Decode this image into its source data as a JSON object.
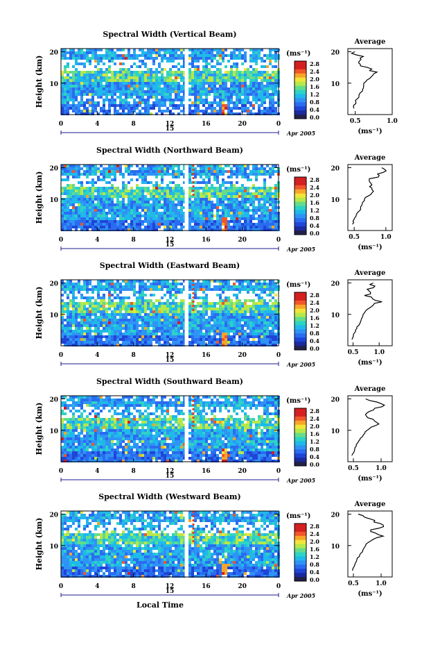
{
  "chart_data": [
    {
      "type": "heatmap",
      "title": "Spectral Width (Vertical Beam)",
      "ylabel": "Height (km)",
      "x_ticks": [
        "0",
        "4",
        "8",
        "12",
        "16",
        "20",
        "0"
      ],
      "y_ticks": [
        "10",
        "20"
      ],
      "date_marker": "15",
      "date_label": "Apr 2005",
      "colorbar": {
        "unit": "(ms⁻¹)",
        "ticks": [
          "2.8",
          "2.4",
          "2.0",
          "1.6",
          "1.2",
          "0.8",
          "0.4",
          "0.0"
        ]
      },
      "average_profile": {
        "title": "Average",
        "xlabel": "(ms⁻¹)",
        "x_ticks": [
          "0.5",
          "1.0"
        ],
        "y_ticks": [
          "10",
          "20"
        ],
        "xlim": [
          0.4,
          1.0
        ],
        "points": [
          [
            0.48,
            2
          ],
          [
            0.49,
            3
          ],
          [
            0.5,
            4
          ],
          [
            0.52,
            5
          ],
          [
            0.55,
            6
          ],
          [
            0.58,
            7
          ],
          [
            0.6,
            8
          ],
          [
            0.61,
            9
          ],
          [
            0.62,
            10
          ],
          [
            0.66,
            11
          ],
          [
            0.72,
            12
          ],
          [
            0.78,
            13
          ],
          [
            0.7,
            14
          ],
          [
            0.66,
            15
          ],
          [
            0.58,
            16
          ],
          [
            0.55,
            17
          ],
          [
            0.6,
            18
          ],
          [
            0.52,
            19
          ],
          [
            0.5,
            20
          ]
        ]
      }
    },
    {
      "type": "heatmap",
      "title": "Spectral Width (Northward Beam)",
      "ylabel": "Height (km)",
      "x_ticks": [
        "0",
        "4",
        "8",
        "12",
        "16",
        "20",
        "0"
      ],
      "y_ticks": [
        "10",
        "20"
      ],
      "date_marker": "15",
      "date_label": "Apr 2005",
      "colorbar": {
        "unit": "(ms⁻¹)",
        "ticks": [
          "2.8",
          "2.4",
          "2.0",
          "1.6",
          "1.2",
          "0.8",
          "0.4",
          "0.0"
        ]
      },
      "average_profile": {
        "title": "Average",
        "xlabel": "(ms⁻¹)",
        "x_ticks": [
          "0.5",
          "1.0"
        ],
        "y_ticks": [
          "10",
          "20"
        ],
        "xlim": [
          0.4,
          1.1
        ],
        "points": [
          [
            0.48,
            2
          ],
          [
            0.49,
            3
          ],
          [
            0.5,
            4
          ],
          [
            0.53,
            5
          ],
          [
            0.57,
            6
          ],
          [
            0.6,
            7
          ],
          [
            0.62,
            8
          ],
          [
            0.64,
            9
          ],
          [
            0.66,
            10
          ],
          [
            0.72,
            11
          ],
          [
            0.78,
            12
          ],
          [
            0.82,
            13
          ],
          [
            0.75,
            14
          ],
          [
            0.8,
            15
          ],
          [
            0.72,
            16
          ],
          [
            0.85,
            17
          ],
          [
            0.9,
            18
          ],
          [
            1.0,
            19
          ],
          [
            0.95,
            20
          ]
        ]
      }
    },
    {
      "type": "heatmap",
      "title": "Spectral Width (Eastward Beam)",
      "ylabel": "Height (km)",
      "x_ticks": [
        "0",
        "4",
        "8",
        "12",
        "16",
        "20",
        "0"
      ],
      "y_ticks": [
        "10",
        "20"
      ],
      "date_marker": "15",
      "date_label": "Apr 2005",
      "colorbar": {
        "unit": "(ms⁻¹)",
        "ticks": [
          "2.8",
          "2.4",
          "2.0",
          "1.6",
          "1.2",
          "0.8",
          "0.4",
          "0.0"
        ]
      },
      "average_profile": {
        "title": "Average",
        "xlabel": "(ms⁻¹)",
        "x_ticks": [
          "0.5",
          "1.0"
        ],
        "y_ticks": [
          "10",
          "20"
        ],
        "xlim": [
          0.4,
          1.25
        ],
        "points": [
          [
            0.48,
            2
          ],
          [
            0.5,
            3
          ],
          [
            0.52,
            4
          ],
          [
            0.55,
            5
          ],
          [
            0.58,
            6
          ],
          [
            0.62,
            7
          ],
          [
            0.65,
            8
          ],
          [
            0.67,
            9
          ],
          [
            0.7,
            10
          ],
          [
            0.74,
            11
          ],
          [
            0.8,
            12
          ],
          [
            0.88,
            13
          ],
          [
            1.05,
            14
          ],
          [
            0.9,
            15
          ],
          [
            0.75,
            16
          ],
          [
            0.85,
            17
          ],
          [
            0.8,
            18
          ],
          [
            0.9,
            19
          ],
          [
            0.85,
            20
          ]
        ]
      }
    },
    {
      "type": "heatmap",
      "title": "Spectral Width (Southward Beam)",
      "ylabel": "Height (km)",
      "x_ticks": [
        "0",
        "4",
        "8",
        "12",
        "16",
        "20",
        "0"
      ],
      "y_ticks": [
        "10",
        "20"
      ],
      "date_marker": "15",
      "date_label": "Apr 2005",
      "colorbar": {
        "unit": "(ms⁻¹)",
        "ticks": [
          "2.8",
          "2.4",
          "2.0",
          "1.6",
          "1.2",
          "0.8",
          "0.4",
          "0.0"
        ]
      },
      "average_profile": {
        "title": "Average",
        "xlabel": "(ms⁻¹)",
        "x_ticks": [
          "0.5",
          "1.0"
        ],
        "y_ticks": [
          "10",
          "20"
        ],
        "xlim": [
          0.4,
          1.2
        ],
        "points": [
          [
            0.48,
            2
          ],
          [
            0.5,
            3
          ],
          [
            0.52,
            4
          ],
          [
            0.55,
            5
          ],
          [
            0.58,
            6
          ],
          [
            0.62,
            7
          ],
          [
            0.66,
            8
          ],
          [
            0.7,
            9
          ],
          [
            0.75,
            10
          ],
          [
            0.82,
            11
          ],
          [
            0.95,
            12
          ],
          [
            0.88,
            13
          ],
          [
            0.8,
            14
          ],
          [
            0.72,
            15
          ],
          [
            0.78,
            16
          ],
          [
            0.9,
            17
          ],
          [
            1.05,
            18
          ],
          [
            0.95,
            19
          ],
          [
            0.75,
            20
          ]
        ]
      }
    },
    {
      "type": "heatmap",
      "title": "Spectral Width (Westward Beam)",
      "ylabel": "Height (km)",
      "xlabel": "Local Time",
      "x_ticks": [
        "0",
        "4",
        "8",
        "12",
        "16",
        "20",
        "0"
      ],
      "y_ticks": [
        "10",
        "20"
      ],
      "date_marker": "15",
      "date_label": "Apr 2005",
      "colorbar": {
        "unit": "(ms⁻¹)",
        "ticks": [
          "2.8",
          "2.4",
          "2.0",
          "1.6",
          "1.2",
          "0.8",
          "0.4",
          "0.0"
        ]
      },
      "average_profile": {
        "title": "Average",
        "xlabel": "(ms⁻¹)",
        "x_ticks": [
          "0.5",
          "1.0"
        ],
        "y_ticks": [
          "10",
          "20"
        ],
        "xlim": [
          0.4,
          1.2
        ],
        "points": [
          [
            0.48,
            2
          ],
          [
            0.5,
            3
          ],
          [
            0.52,
            4
          ],
          [
            0.55,
            5
          ],
          [
            0.58,
            6
          ],
          [
            0.62,
            7
          ],
          [
            0.66,
            8
          ],
          [
            0.68,
            9
          ],
          [
            0.72,
            10
          ],
          [
            0.76,
            11
          ],
          [
            0.85,
            12
          ],
          [
            1.0,
            13
          ],
          [
            0.9,
            14
          ],
          [
            0.8,
            15
          ],
          [
            1.05,
            16
          ],
          [
            0.95,
            17
          ],
          [
            0.85,
            18
          ],
          [
            0.7,
            19
          ],
          [
            0.6,
            20
          ]
        ]
      }
    }
  ]
}
